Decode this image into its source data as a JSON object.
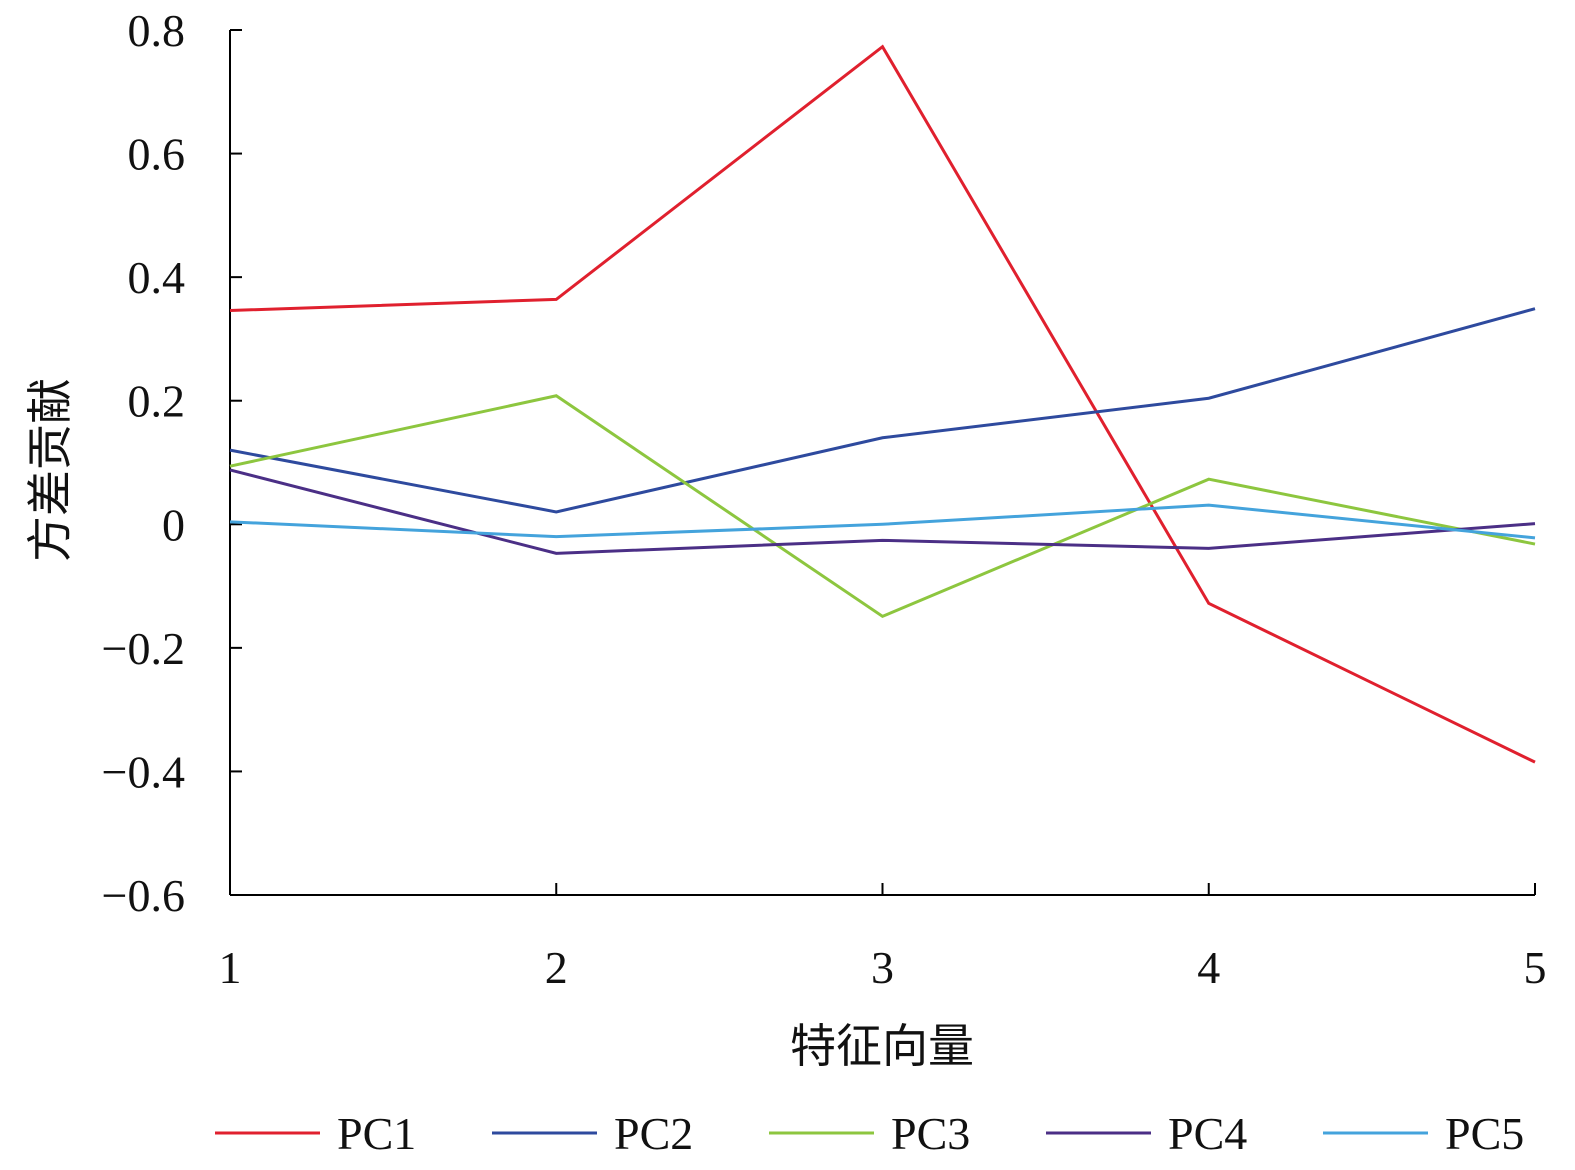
{
  "chart_data": {
    "type": "line",
    "xlabel": "特征向量",
    "ylabel": "方差贡献",
    "x": [
      1,
      2,
      3,
      4,
      5
    ],
    "xticks": [
      "1",
      "2",
      "3",
      "4",
      "5"
    ],
    "xlim": [
      1,
      5
    ],
    "ylim": [
      -0.6,
      0.8
    ],
    "yticks": [
      -0.6,
      -0.4,
      -0.2,
      0,
      0.2,
      0.4,
      0.6,
      0.8
    ],
    "ytick_labels": [
      "−0.6",
      "−0.4",
      "−0.2",
      "0",
      "0.2",
      "0.4",
      "0.6",
      "0.8"
    ],
    "grid": false,
    "legend_position": "bottom",
    "series": [
      {
        "name": "PC1",
        "color": "#e0202e",
        "values": [
          0.346,
          0.364,
          0.773,
          -0.128,
          -0.385
        ]
      },
      {
        "name": "PC2",
        "color": "#2e4a9e",
        "values": [
          0.12,
          0.02,
          0.14,
          0.204,
          0.349
        ]
      },
      {
        "name": "PC3",
        "color": "#8dc63f",
        "values": [
          0.094,
          0.208,
          -0.149,
          0.073,
          -0.032
        ]
      },
      {
        "name": "PC4",
        "color": "#4b2f86",
        "values": [
          0.088,
          -0.047,
          -0.026,
          -0.039,
          0.001
        ]
      },
      {
        "name": "PC5",
        "color": "#44a3dc",
        "values": [
          0.004,
          -0.02,
          0.0,
          0.031,
          -0.022
        ]
      }
    ]
  }
}
